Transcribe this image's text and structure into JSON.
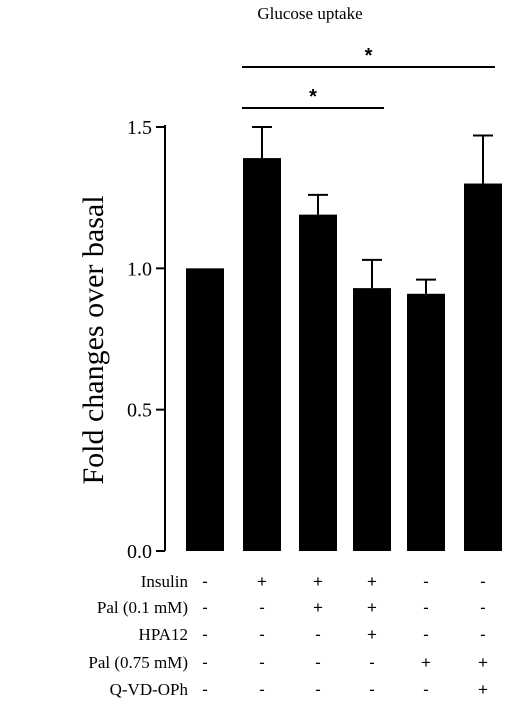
{
  "chart_data": {
    "type": "bar",
    "title": "Glucose uptake",
    "ylabel": "Fold changes over basal",
    "xlabel": "",
    "ylim": [
      0,
      1.5
    ],
    "yticks": [
      "0.0",
      "0.5",
      "1.0",
      "1.5"
    ],
    "values": [
      1.0,
      1.39,
      1.19,
      0.93,
      0.91,
      1.3
    ],
    "errors": [
      0,
      0.11,
      0.07,
      0.1,
      0.05,
      0.17
    ],
    "bar_color": "#000000",
    "significance": [
      {
        "from": 1,
        "to": 5,
        "label": "*"
      },
      {
        "from": 1,
        "to": 3,
        "label": "*"
      }
    ],
    "conditions": [
      {
        "label": "Insulin",
        "signs": [
          "-",
          "+",
          "+",
          "+",
          "-",
          "-"
        ]
      },
      {
        "label": "Pal (0.1 mM)",
        "signs": [
          "-",
          "-",
          "+",
          "+",
          "-",
          "-"
        ]
      },
      {
        "label": "HPA12",
        "signs": [
          "-",
          "-",
          "-",
          "+",
          "-",
          "-"
        ]
      },
      {
        "label": "Pal (0.75 mM)",
        "signs": [
          "-",
          "-",
          "-",
          "-",
          "+",
          "+"
        ]
      },
      {
        "label": "Q-VD-OPh",
        "signs": [
          "-",
          "-",
          "-",
          "-",
          "-",
          "+"
        ]
      }
    ]
  }
}
